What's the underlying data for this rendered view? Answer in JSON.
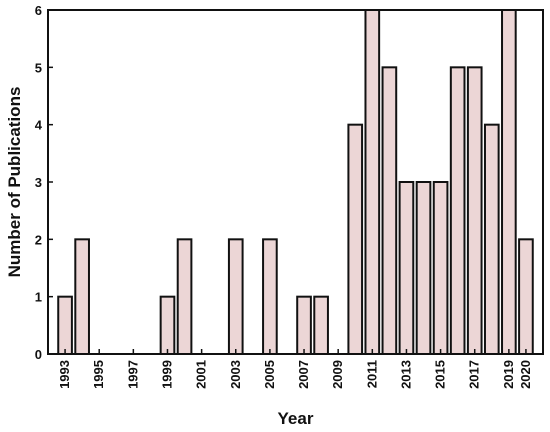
{
  "chart_data": {
    "type": "bar",
    "xlabel": "Year",
    "ylabel": "Number of Publications",
    "x": [
      1993,
      1994,
      1995,
      1996,
      1997,
      1998,
      1999,
      2000,
      2001,
      2002,
      2003,
      2004,
      2005,
      2006,
      2007,
      2008,
      2009,
      2010,
      2011,
      2012,
      2013,
      2014,
      2015,
      2016,
      2017,
      2018,
      2019,
      2020
    ],
    "values": [
      1,
      2,
      0,
      0,
      0,
      0,
      1,
      2,
      0,
      0,
      2,
      0,
      2,
      0,
      1,
      1,
      0,
      4,
      6,
      5,
      3,
      3,
      3,
      5,
      5,
      4,
      6,
      2
    ],
    "x_tick_labels": [
      "1993",
      "1995",
      "1997",
      "1999",
      "2001",
      "2003",
      "2005",
      "2007",
      "2009",
      "2011",
      "2013",
      "2015",
      "2017",
      "2019",
      "2020"
    ],
    "y_tick_labels": [
      "0",
      "1",
      "2",
      "3",
      "4",
      "5",
      "6"
    ],
    "ylim": [
      0,
      6
    ],
    "xlim": [
      1992,
      2021
    ],
    "grid": false,
    "colors": {
      "bar_fill": "#ecd6d6",
      "bar_edge": "#111111"
    }
  }
}
